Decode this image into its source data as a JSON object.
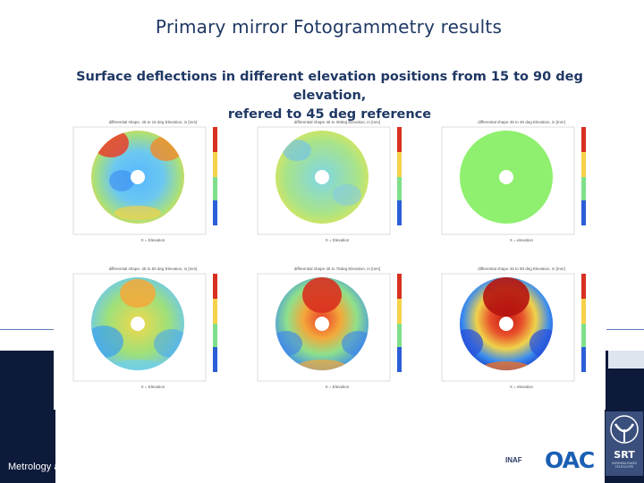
{
  "slide": {
    "title": "Primary mirror Fotogrammetry results",
    "footer": "Metrology at Sardinia Radio Telescope"
  },
  "figure": {
    "caption_line1": "Surface deflections in different elevation positions from 15 to 90 deg elevation,",
    "caption_line2": "refered to 45 deg reference",
    "plots": [
      {
        "title": "differential shape, 45 to 15 deg Elevation, in [mm]",
        "xlabel": "X = Elevation"
      },
      {
        "title": "differential shape 45 to 30deg Elevation, in [mm]",
        "xlabel": "X = Elevation"
      },
      {
        "title": "differential shape 45 to 45 deg Elevation, in [mm]",
        "xlabel": "X = elevation"
      },
      {
        "title": "differential shape, 45 to 60 deg Elevation, in [mm]",
        "xlabel": "X = Elevation"
      },
      {
        "title": "differential shape 45 to 75deg Elevation, in [mm]",
        "xlabel": "X = Elevation"
      },
      {
        "title": "differential shape 45 to 90 deg Elevation, in [mm]",
        "xlabel": "X = elevation"
      }
    ]
  },
  "logos": {
    "inaf": "INAF",
    "oac": "OAC",
    "srt": "SRT",
    "srt_sub": "SARDINIA RADIO TELESCOPE"
  },
  "colors": {
    "title": "#1f3864",
    "band": "#0d1a3a",
    "oac_blue": "#1a5fb4"
  }
}
